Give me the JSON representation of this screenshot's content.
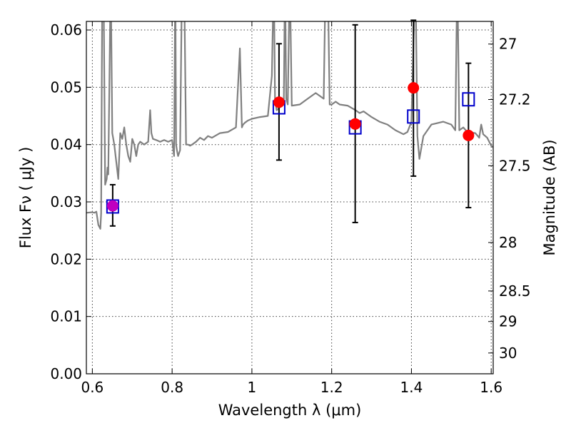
{
  "chart_data": {
    "type": "scatter",
    "title": "",
    "xlabel": "Wavelength  λ (μm)",
    "ylabel_left": "Flux  Fν  ( μJy )",
    "ylabel_right": "Magnitude (AB)",
    "xlim": [
      0.585,
      1.605
    ],
    "ylim": [
      0.0,
      0.0615
    ],
    "x_ticks": [
      0.6,
      0.8,
      1.0,
      1.2,
      1.4,
      1.6
    ],
    "x_tick_labels": [
      "0.6",
      "0.8",
      "1",
      "1.2",
      "1.4",
      "1.6"
    ],
    "y_ticks": [
      0.0,
      0.01,
      0.02,
      0.03,
      0.04,
      0.05,
      0.06
    ],
    "y_tick_labels": [
      "0.00",
      "0.01",
      "0.02",
      "0.03",
      "0.04",
      "0.05",
      "0.06"
    ],
    "right_ticks": [
      {
        "mag": 27.0,
        "label": "27"
      },
      {
        "mag": 27.2,
        "label": "27.2"
      },
      {
        "mag": 27.5,
        "label": "27.5"
      },
      {
        "mag": 28.0,
        "label": "28"
      },
      {
        "mag": 28.5,
        "label": "28.5"
      },
      {
        "mag": 29.0,
        "label": "29"
      },
      {
        "mag": 30.0,
        "label": "30"
      }
    ],
    "grid": true,
    "colors": {
      "spectrum": "#808080",
      "observed": "#ff0000",
      "observed_overlap": "#c000c0",
      "model": "#0000cc",
      "errorbar": "#000000"
    },
    "series": [
      {
        "name": "Model spectrum",
        "kind": "line",
        "x": [
          0.585,
          0.6,
          0.605,
          0.61,
          0.615,
          0.62,
          0.622,
          0.625,
          0.628,
          0.632,
          0.636,
          0.638,
          0.64,
          0.643,
          0.646,
          0.65,
          0.655,
          0.66,
          0.665,
          0.67,
          0.675,
          0.68,
          0.685,
          0.69,
          0.695,
          0.7,
          0.705,
          0.71,
          0.715,
          0.72,
          0.73,
          0.74,
          0.745,
          0.748,
          0.752,
          0.76,
          0.77,
          0.78,
          0.79,
          0.8,
          0.805,
          0.808,
          0.81,
          0.812,
          0.815,
          0.82,
          0.825,
          0.83,
          0.835,
          0.84,
          0.845,
          0.85,
          0.86,
          0.87,
          0.88,
          0.89,
          0.9,
          0.92,
          0.94,
          0.96,
          0.97,
          0.975,
          0.978,
          0.982,
          0.99,
          1.0,
          1.02,
          1.04,
          1.05,
          1.055,
          1.058,
          1.062,
          1.07,
          1.08,
          1.083,
          1.086,
          1.09,
          1.095,
          1.1,
          1.12,
          1.14,
          1.16,
          1.18,
          1.185,
          1.19,
          1.195,
          1.2,
          1.21,
          1.22,
          1.24,
          1.26,
          1.27,
          1.28,
          1.3,
          1.32,
          1.34,
          1.36,
          1.38,
          1.39,
          1.4,
          1.41,
          1.415,
          1.42,
          1.43,
          1.45,
          1.48,
          1.5,
          1.51,
          1.515,
          1.52,
          1.53,
          1.54,
          1.56,
          1.57,
          1.575,
          1.58,
          1.59,
          1.6,
          1.605
        ],
        "y": [
          0.0281,
          0.0282,
          0.0281,
          0.0283,
          0.026,
          0.0253,
          0.028,
          0.07,
          0.07,
          0.033,
          0.034,
          0.036,
          0.0348,
          0.052,
          0.07,
          0.042,
          0.04,
          0.037,
          0.034,
          0.042,
          0.041,
          0.043,
          0.04,
          0.038,
          0.037,
          0.041,
          0.04,
          0.038,
          0.04,
          0.0405,
          0.04,
          0.0405,
          0.046,
          0.042,
          0.041,
          0.0408,
          0.0405,
          0.0408,
          0.0405,
          0.0408,
          0.038,
          0.07,
          0.04,
          0.039,
          0.038,
          0.039,
          0.07,
          0.07,
          0.04,
          0.04,
          0.0398,
          0.04,
          0.0405,
          0.0412,
          0.0408,
          0.0415,
          0.0412,
          0.042,
          0.0422,
          0.043,
          0.0568,
          0.043,
          0.0435,
          0.0438,
          0.0442,
          0.0445,
          0.0448,
          0.045,
          0.052,
          0.07,
          0.048,
          0.046,
          0.0465,
          0.047,
          0.07,
          0.048,
          0.047,
          0.07,
          0.0468,
          0.047,
          0.048,
          0.049,
          0.048,
          0.07,
          0.07,
          0.047,
          0.047,
          0.0475,
          0.047,
          0.0468,
          0.046,
          0.0455,
          0.0458,
          0.0448,
          0.044,
          0.0435,
          0.0425,
          0.0418,
          0.0422,
          0.044,
          0.07,
          0.0415,
          0.0375,
          0.0415,
          0.0435,
          0.044,
          0.0435,
          0.0425,
          0.07,
          0.0425,
          0.043,
          0.0422,
          0.042,
          0.0412,
          0.0435,
          0.0418,
          0.0412,
          0.0398,
          0.0395
        ]
      },
      {
        "name": "Observed photometry",
        "kind": "errorbar",
        "points": [
          {
            "x": 0.651,
            "y": 0.0293,
            "yerr": [
              0.0035,
              0.0037
            ],
            "label": ""
          },
          {
            "x": 1.068,
            "y": 0.0474,
            "yerr": [
              0.0101,
              0.0102
            ],
            "label": ""
          },
          {
            "x": 1.259,
            "y": 0.0436,
            "yerr": [
              0.0172,
              0.0173
            ],
            "label": ""
          },
          {
            "x": 1.405,
            "y": 0.0499,
            "yerr": [
              0.0154,
              0.0118
            ],
            "label": ""
          },
          {
            "x": 1.543,
            "y": 0.0416,
            "yerr": [
              0.0126,
              0.0126
            ],
            "label": ""
          }
        ]
      },
      {
        "name": "Model photometry",
        "kind": "scatter",
        "points": [
          {
            "x": 0.651,
            "y": 0.0292
          },
          {
            "x": 1.068,
            "y": 0.0465
          },
          {
            "x": 1.259,
            "y": 0.043
          },
          {
            "x": 1.405,
            "y": 0.0449
          },
          {
            "x": 1.543,
            "y": 0.0479
          }
        ]
      }
    ]
  }
}
